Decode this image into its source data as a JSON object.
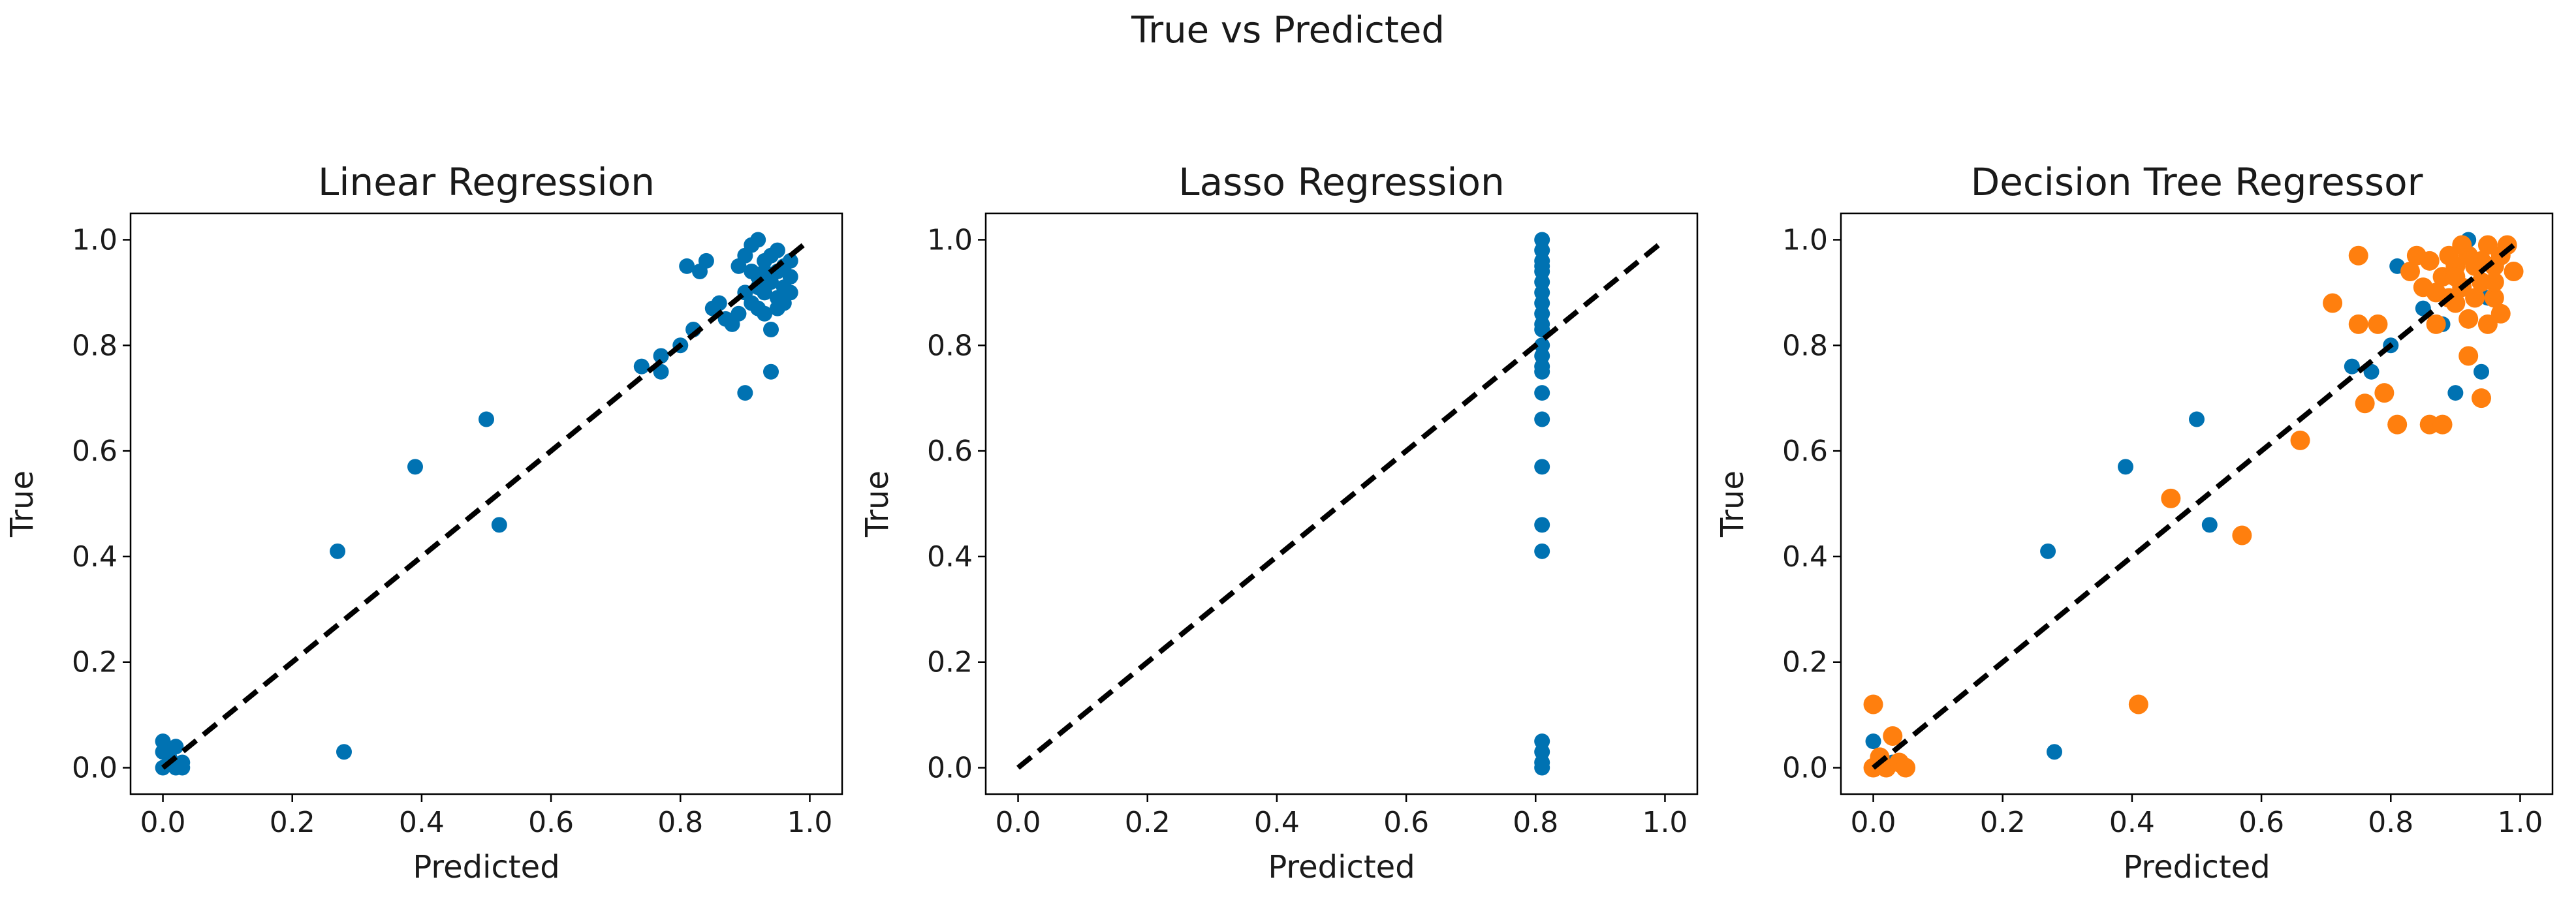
{
  "figure": {
    "suptitle": "True vs Predicted"
  },
  "colors": {
    "blue": "#0072B2",
    "orange": "#FF7F0E",
    "diag": "#000000"
  },
  "chart_data": [
    {
      "type": "scatter",
      "title": "Linear Regression",
      "xlabel": "Predicted",
      "ylabel": "True",
      "xlim": [
        -0.05,
        1.05
      ],
      "ylim": [
        -0.05,
        1.05
      ],
      "xticks": [
        0.0,
        0.2,
        0.4,
        0.6,
        0.8,
        1.0
      ],
      "yticks": [
        0.0,
        0.2,
        0.4,
        0.6,
        0.8,
        1.0
      ],
      "tick_labels": [
        "0.0",
        "0.2",
        "0.4",
        "0.6",
        "0.8",
        "1.0"
      ],
      "diagonal": [
        [
          0,
          0
        ],
        [
          1,
          1
        ]
      ],
      "series": [
        {
          "color": "blue",
          "points": [
            [
              0.0,
              0.0
            ],
            [
              0.0,
              0.05
            ],
            [
              0.01,
              0.02
            ],
            [
              0.02,
              0.0
            ],
            [
              0.03,
              0.01
            ],
            [
              0.0,
              0.03
            ],
            [
              0.02,
              0.04
            ],
            [
              0.03,
              0.0
            ],
            [
              0.27,
              0.41
            ],
            [
              0.28,
              0.03
            ],
            [
              0.39,
              0.57
            ],
            [
              0.5,
              0.66
            ],
            [
              0.52,
              0.46
            ],
            [
              0.74,
              0.76
            ],
            [
              0.77,
              0.75
            ],
            [
              0.77,
              0.78
            ],
            [
              0.8,
              0.8
            ],
            [
              0.82,
              0.83
            ],
            [
              0.81,
              0.95
            ],
            [
              0.83,
              0.94
            ],
            [
              0.84,
              0.96
            ],
            [
              0.85,
              0.87
            ],
            [
              0.86,
              0.88
            ],
            [
              0.87,
              0.85
            ],
            [
              0.88,
              0.84
            ],
            [
              0.89,
              0.86
            ],
            [
              0.9,
              0.71
            ],
            [
              0.9,
              0.97
            ],
            [
              0.91,
              0.99
            ],
            [
              0.91,
              0.88
            ],
            [
              0.92,
              1.0
            ],
            [
              0.92,
              0.93
            ],
            [
              0.93,
              0.96
            ],
            [
              0.93,
              0.9
            ],
            [
              0.94,
              0.75
            ],
            [
              0.94,
              0.83
            ],
            [
              0.94,
              0.92
            ],
            [
              0.95,
              0.94
            ],
            [
              0.95,
              0.98
            ],
            [
              0.95,
              0.89
            ],
            [
              0.96,
              0.91
            ],
            [
              0.96,
              0.95
            ],
            [
              0.97,
              0.9
            ],
            [
              0.97,
              0.93
            ],
            [
              0.92,
              0.87
            ],
            [
              0.93,
              0.86
            ],
            [
              0.95,
              0.87
            ],
            [
              0.96,
              0.88
            ],
            [
              0.9,
              0.9
            ],
            [
              0.89,
              0.95
            ],
            [
              0.94,
              0.97
            ],
            [
              0.92,
              0.91
            ],
            [
              0.97,
              0.96
            ],
            [
              0.93,
              0.94
            ],
            [
              0.91,
              0.94
            ]
          ]
        }
      ]
    },
    {
      "type": "scatter",
      "title": "Lasso Regression",
      "xlabel": "Predicted",
      "ylabel": "True",
      "xlim": [
        -0.05,
        1.05
      ],
      "ylim": [
        -0.05,
        1.05
      ],
      "xticks": [
        0.0,
        0.2,
        0.4,
        0.6,
        0.8,
        1.0
      ],
      "yticks": [
        0.0,
        0.2,
        0.4,
        0.6,
        0.8,
        1.0
      ],
      "tick_labels": [
        "0.0",
        "0.2",
        "0.4",
        "0.6",
        "0.8",
        "1.0"
      ],
      "diagonal": [
        [
          0,
          0
        ],
        [
          1,
          1
        ]
      ],
      "series": [
        {
          "color": "blue",
          "points": [
            [
              0.81,
              0.0
            ],
            [
              0.81,
              0.01
            ],
            [
              0.81,
              0.03
            ],
            [
              0.81,
              0.05
            ],
            [
              0.81,
              0.41
            ],
            [
              0.81,
              0.46
            ],
            [
              0.81,
              0.57
            ],
            [
              0.81,
              0.66
            ],
            [
              0.81,
              0.71
            ],
            [
              0.81,
              0.75
            ],
            [
              0.81,
              0.76
            ],
            [
              0.81,
              0.78
            ],
            [
              0.81,
              0.8
            ],
            [
              0.81,
              0.83
            ],
            [
              0.81,
              0.84
            ],
            [
              0.81,
              0.86
            ],
            [
              0.81,
              0.88
            ],
            [
              0.81,
              0.9
            ],
            [
              0.81,
              0.92
            ],
            [
              0.81,
              0.94
            ],
            [
              0.81,
              0.95
            ],
            [
              0.81,
              0.96
            ],
            [
              0.81,
              0.98
            ],
            [
              0.81,
              1.0
            ]
          ]
        }
      ]
    },
    {
      "type": "scatter",
      "title": "Decision Tree Regressor",
      "xlabel": "Predicted",
      "ylabel": "True",
      "xlim": [
        -0.05,
        1.05
      ],
      "ylim": [
        -0.05,
        1.05
      ],
      "xticks": [
        0.0,
        0.2,
        0.4,
        0.6,
        0.8,
        1.0
      ],
      "yticks": [
        0.0,
        0.2,
        0.4,
        0.6,
        0.8,
        1.0
      ],
      "tick_labels": [
        "0.0",
        "0.2",
        "0.4",
        "0.6",
        "0.8",
        "1.0"
      ],
      "diagonal": [
        [
          0,
          0
        ],
        [
          1,
          1
        ]
      ],
      "series": [
        {
          "color": "blue",
          "points": [
            [
              0.0,
              0.0
            ],
            [
              0.0,
              0.05
            ],
            [
              0.01,
              0.02
            ],
            [
              0.02,
              0.0
            ],
            [
              0.03,
              0.01
            ],
            [
              0.27,
              0.41
            ],
            [
              0.28,
              0.03
            ],
            [
              0.39,
              0.57
            ],
            [
              0.5,
              0.66
            ],
            [
              0.52,
              0.46
            ],
            [
              0.74,
              0.76
            ],
            [
              0.77,
              0.75
            ],
            [
              0.8,
              0.8
            ],
            [
              0.81,
              0.95
            ],
            [
              0.85,
              0.87
            ],
            [
              0.88,
              0.84
            ],
            [
              0.9,
              0.71
            ],
            [
              0.92,
              1.0
            ],
            [
              0.93,
              0.96
            ],
            [
              0.94,
              0.75
            ],
            [
              0.95,
              0.89
            ],
            [
              0.96,
              0.95
            ]
          ]
        },
        {
          "color": "orange",
          "points": [
            [
              0.0,
              0.0
            ],
            [
              0.0,
              0.12
            ],
            [
              0.01,
              0.02
            ],
            [
              0.02,
              0.0
            ],
            [
              0.03,
              0.06
            ],
            [
              0.04,
              0.01
            ],
            [
              0.05,
              0.0
            ],
            [
              0.41,
              0.12
            ],
            [
              0.46,
              0.51
            ],
            [
              0.57,
              0.44
            ],
            [
              0.66,
              0.62
            ],
            [
              0.71,
              0.88
            ],
            [
              0.75,
              0.97
            ],
            [
              0.75,
              0.84
            ],
            [
              0.76,
              0.69
            ],
            [
              0.78,
              0.84
            ],
            [
              0.79,
              0.71
            ],
            [
              0.81,
              0.65
            ],
            [
              0.83,
              0.94
            ],
            [
              0.84,
              0.97
            ],
            [
              0.85,
              0.91
            ],
            [
              0.86,
              0.65
            ],
            [
              0.87,
              0.84
            ],
            [
              0.88,
              0.93
            ],
            [
              0.88,
              0.65
            ],
            [
              0.89,
              0.97
            ],
            [
              0.89,
              0.89
            ],
            [
              0.9,
              0.95
            ],
            [
              0.91,
              0.91
            ],
            [
              0.92,
              0.78
            ],
            [
              0.92,
              0.97
            ],
            [
              0.93,
              0.89
            ],
            [
              0.93,
              0.95
            ],
            [
              0.94,
              0.7
            ],
            [
              0.94,
              0.92
            ],
            [
              0.95,
              0.84
            ],
            [
              0.95,
              0.99
            ],
            [
              0.96,
              0.89
            ],
            [
              0.96,
              0.95
            ],
            [
              0.97,
              0.97
            ],
            [
              0.98,
              0.99
            ],
            [
              0.99,
              0.94
            ],
            [
              0.9,
              0.88
            ],
            [
              0.91,
              0.99
            ],
            [
              0.96,
              0.92
            ],
            [
              0.97,
              0.86
            ],
            [
              0.87,
              0.9
            ],
            [
              0.9,
              0.93
            ],
            [
              0.94,
              0.96
            ],
            [
              0.86,
              0.96
            ],
            [
              0.92,
              0.85
            ]
          ]
        }
      ]
    }
  ]
}
